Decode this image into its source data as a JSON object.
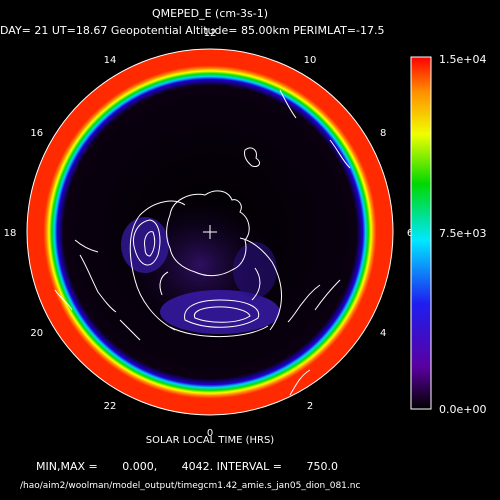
{
  "chart_data": {
    "type": "heatmap",
    "projection": "polar stereographic (south pole centered)",
    "title": "QMEPED_E (cm-3s-1)",
    "subtitle": "DAY= 21 UT=18.67 Geopotential Altitude= 85.00km PERIMLAT=-17.5",
    "xlabel": "SOLAR LOCAL TIME (HRS)",
    "local_time_ticks": [
      "0",
      "2",
      "4",
      "6",
      "8",
      "10",
      "12",
      "14",
      "16",
      "18",
      "20",
      "22"
    ],
    "colorbar": {
      "min_label": "0.0e+00",
      "mid_label": "7.5e+03",
      "max_label": "1.5e+04",
      "range": [
        0,
        15000
      ]
    },
    "stats": {
      "text": "MIN,MAX =       0.000,       4042. INTERVAL =       750.0",
      "min": 0.0,
      "max": 4042,
      "interval": 750.0
    },
    "file_path": "/hao/aim2/woolman/model_output/timegcm1.42_amie.s_jan05_dion_081.nc",
    "colors": {
      "background": "#000000",
      "outer_field": "#ff2a00",
      "low_value": "#000000",
      "oval_peak": "#4a1aa8",
      "contours": "#ffffff",
      "coastlines": "#ffffff"
    }
  }
}
